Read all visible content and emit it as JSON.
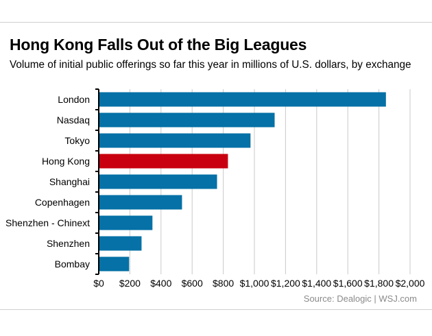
{
  "header": {
    "title": "Hong Kong Falls Out of the Big Leagues",
    "subtitle": "Volume of initial public offerings so far this year in millions of U.S. dollars, by exchange"
  },
  "footer": {
    "source": "Source: Dealogic  |  WSJ.com"
  },
  "colors": {
    "default_bar": "#0571a6",
    "highlight_bar": "#c8000f",
    "grid": "#c9c9c9",
    "axis": "#000000"
  },
  "chart_data": {
    "type": "bar",
    "orientation": "horizontal",
    "title": "Hong Kong Falls Out of the Big Leagues",
    "xlabel": "",
    "ylabel": "",
    "xlim": [
      0,
      2000
    ],
    "grid": true,
    "categories": [
      "London",
      "Nasdaq",
      "Tokyo",
      "Hong Kong",
      "Shanghai",
      "Copenhagen",
      "Shenzhen - Chinext",
      "Shenzhen",
      "Bombay"
    ],
    "values": [
      1845,
      1130,
      975,
      830,
      760,
      535,
      345,
      275,
      195
    ],
    "highlight": "Hong Kong",
    "ticks": [
      0,
      200,
      400,
      600,
      800,
      1000,
      1200,
      1400,
      1600,
      1800,
      2000
    ],
    "tick_labels": [
      "$0",
      "$200",
      "$400",
      "$600",
      "$800",
      "$1,000",
      "$1,200",
      "$1,400",
      "$1,600",
      "$1,800",
      "$2,000"
    ]
  }
}
